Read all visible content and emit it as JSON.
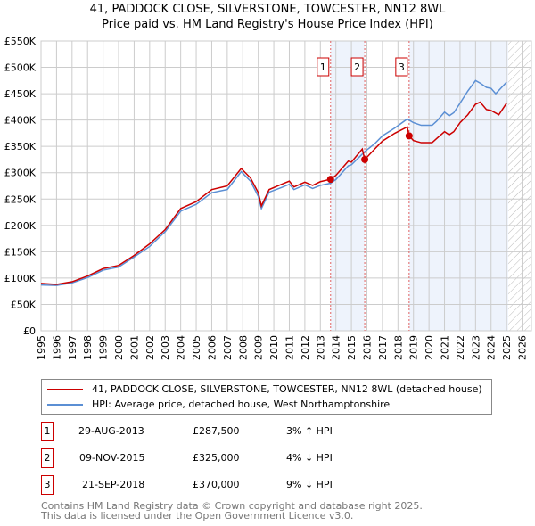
{
  "title": "41, PADDOCK CLOSE, SILVERSTONE, TOWCESTER, NN12 8WL",
  "subtitle": "Price paid vs. HM Land Registry's House Price Index (HPI)",
  "chart_data": {
    "type": "line",
    "xlim": [
      1995,
      2026.6
    ],
    "ylim": [
      0,
      550000
    ],
    "yticks": [
      0,
      50000,
      100000,
      150000,
      200000,
      250000,
      300000,
      350000,
      400000,
      450000,
      500000,
      550000
    ],
    "ytick_labels": [
      "£0",
      "£50K",
      "£100K",
      "£150K",
      "£200K",
      "£250K",
      "£300K",
      "£350K",
      "£400K",
      "£450K",
      "£500K",
      "£550K"
    ],
    "xticks": [
      1995,
      1996,
      1997,
      1998,
      1999,
      2000,
      2001,
      2002,
      2003,
      2004,
      2005,
      2006,
      2007,
      2008,
      2009,
      2010,
      2011,
      2012,
      2013,
      2014,
      2015,
      2016,
      2017,
      2018,
      2019,
      2020,
      2021,
      2022,
      2023,
      2024,
      2025,
      2026
    ],
    "grid": true,
    "shaded_ranges": [
      [
        2013.66,
        2015.86
      ],
      [
        2018.72,
        2025.1
      ]
    ],
    "hatched_from": 2025.1,
    "series": [
      {
        "name": "41, PADDOCK CLOSE, SILVERSTONE, TOWCESTER, NN12 8WL (detached house)",
        "color": "#cc0000",
        "x": [
          1995,
          1996,
          1997,
          1998,
          1999,
          2000,
          2001,
          2002,
          2003,
          2004,
          2005,
          2006,
          2007,
          2007.9,
          2008.5,
          2009,
          2009.2,
          2009.7,
          2010.5,
          2011,
          2011.3,
          2012,
          2012.5,
          2013,
          2013.66,
          2014,
          2014.8,
          2015,
          2015.7,
          2015.86,
          2016.5,
          2017,
          2017.8,
          2018.6,
          2018.72,
          2019,
          2019.5,
          2020.2,
          2020.5,
          2021,
          2021.3,
          2021.6,
          2022,
          2022.5,
          2023,
          2023.3,
          2023.7,
          2024,
          2024.5,
          2025
        ],
        "y": [
          90000,
          88000,
          93000,
          104000,
          118000,
          124000,
          143000,
          165000,
          192000,
          232000,
          245000,
          268000,
          275000,
          308000,
          290000,
          262000,
          237000,
          268000,
          278000,
          284000,
          273000,
          282000,
          276000,
          283000,
          287500,
          295000,
          322000,
          320000,
          345000,
          325000,
          345000,
          360000,
          375000,
          387000,
          370000,
          361000,
          357000,
          357000,
          365000,
          378000,
          372000,
          378000,
          395000,
          410000,
          430000,
          434000,
          420000,
          418000,
          410000,
          432000
        ]
      },
      {
        "name": "HPI: Average price, detached house, West Northamptonshire",
        "color": "#5b8fd4",
        "x": [
          1995,
          1996,
          1997,
          1998,
          1999,
          2000,
          2001,
          2002,
          2003,
          2004,
          2005,
          2006,
          2007,
          2007.9,
          2008.5,
          2009,
          2009.2,
          2009.7,
          2010.5,
          2011,
          2011.3,
          2012,
          2012.5,
          2013,
          2013.66,
          2014,
          2014.8,
          2015,
          2015.86,
          2016.5,
          2017,
          2017.8,
          2018.6,
          2019,
          2019.5,
          2020.2,
          2020.5,
          2021,
          2021.3,
          2021.6,
          2022,
          2022.5,
          2023,
          2023.3,
          2023.7,
          2024,
          2024.3,
          2025
        ],
        "y": [
          87000,
          86000,
          91000,
          101000,
          115000,
          121000,
          140000,
          160000,
          188000,
          227000,
          240000,
          262000,
          268000,
          302000,
          284000,
          255000,
          232000,
          263000,
          272000,
          278000,
          268000,
          277000,
          270000,
          276000,
          280000,
          287000,
          313000,
          315000,
          340000,
          355000,
          370000,
          385000,
          402000,
          395000,
          390000,
          390000,
          398000,
          415000,
          408000,
          414000,
          432000,
          455000,
          475000,
          470000,
          462000,
          460000,
          450000,
          472000
        ]
      }
    ],
    "sales": [
      {
        "id": "1",
        "x": 2013.66,
        "y": 287500
      },
      {
        "id": "2",
        "x": 2015.86,
        "y": 325000
      },
      {
        "id": "3",
        "x": 2018.72,
        "y": 370000
      }
    ]
  },
  "legend": {
    "red": "41, PADDOCK CLOSE, SILVERSTONE, TOWCESTER, NN12 8WL (detached house)",
    "blue": "HPI: Average price, detached house, West Northamptonshire"
  },
  "transactions": [
    {
      "num": "1",
      "date": "29-AUG-2013",
      "price": "£287,500",
      "hpi": "3% ↑ HPI"
    },
    {
      "num": "2",
      "date": "09-NOV-2015",
      "price": "£325,000",
      "hpi": "4% ↓ HPI"
    },
    {
      "num": "3",
      "date": "21-SEP-2018",
      "price": "£370,000",
      "hpi": "9% ↓ HPI"
    }
  ],
  "footer": {
    "line1": "Contains HM Land Registry data © Crown copyright and database right 2025.",
    "line2": "This data is licensed under the Open Government Licence v3.0."
  }
}
